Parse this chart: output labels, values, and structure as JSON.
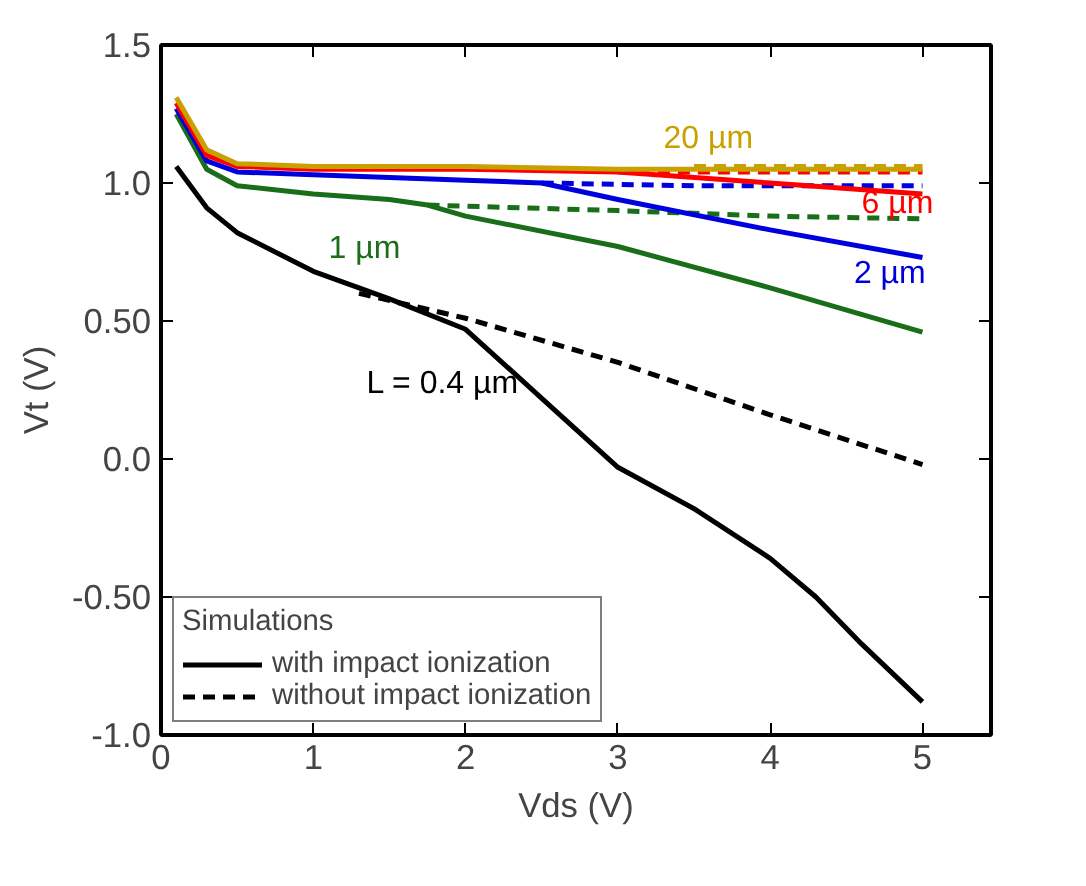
{
  "chart_data": {
    "type": "line",
    "xlabel": "Vds (V)",
    "ylabel": "Vt (V)",
    "legend_title": "Simulations",
    "legend": "bottom left",
    "grid": false,
    "xlim": [
      0,
      5.45
    ],
    "ylim": [
      -1.0,
      1.5
    ],
    "xticks": [
      0,
      1,
      2,
      3,
      4,
      5
    ],
    "yticks": [
      {
        "value": -1.0,
        "label": "-1.0"
      },
      {
        "value": -0.5,
        "label": "-0.50"
      },
      {
        "value": 0.0,
        "label": "0.0"
      },
      {
        "value": 0.5,
        "label": "0.50"
      },
      {
        "value": 1.0,
        "label": "1.0"
      },
      1.5
    ],
    "series": [
      {
        "name": "with impact ionization",
        "color": "#000000",
        "line_style": "solid",
        "x": [
          0.1,
          0.3,
          0.5,
          1.0,
          1.5,
          2.0,
          2.5,
          3.0,
          3.5,
          4.0,
          4.3,
          4.6,
          5.0
        ],
        "values": [
          1.06,
          0.91,
          0.82,
          0.68,
          0.58,
          0.47,
          0.22,
          -0.03,
          -0.18,
          -0.36,
          -0.5,
          -0.67,
          -0.88
        ]
      },
      {
        "name": "without impact ionization",
        "color": "#000000",
        "line_style": "dashed",
        "x": [
          1.3,
          2.0,
          3.0,
          4.0,
          5.0
        ],
        "values": [
          0.6,
          0.51,
          0.35,
          0.16,
          -0.02
        ]
      },
      {
        "color": "#1a6e1a",
        "line_style": "solid",
        "x": [
          0.1,
          0.3,
          0.5,
          1.0,
          1.5,
          1.75,
          2.0,
          3.0,
          4.0,
          5.0
        ],
        "values": [
          1.25,
          1.05,
          0.99,
          0.96,
          0.94,
          0.92,
          0.88,
          0.77,
          0.62,
          0.46
        ]
      },
      {
        "color": "#1a6e1a",
        "line_style": "dashed",
        "x": [
          1.75,
          3.0,
          4.0,
          5.0
        ],
        "values": [
          0.92,
          0.9,
          0.88,
          0.87
        ]
      },
      {
        "color": "#0000dd",
        "line_style": "solid",
        "x": [
          0.1,
          0.3,
          0.5,
          1.0,
          2.0,
          2.5,
          3.0,
          4.0,
          5.0
        ],
        "values": [
          1.27,
          1.08,
          1.04,
          1.03,
          1.01,
          1.0,
          0.94,
          0.83,
          0.73
        ]
      },
      {
        "color": "#0000dd",
        "line_style": "dashed",
        "x": [
          2.5,
          3.5,
          5.0
        ],
        "values": [
          1.0,
          0.99,
          0.99
        ]
      },
      {
        "color": "#ff0000",
        "line_style": "solid",
        "x": [
          0.1,
          0.3,
          0.5,
          1.0,
          2.0,
          3.0,
          4.0,
          5.0
        ],
        "values": [
          1.29,
          1.1,
          1.06,
          1.05,
          1.05,
          1.04,
          1.0,
          0.96
        ]
      },
      {
        "color": "#ff0000",
        "line_style": "dashed",
        "x": [
          3.0,
          4.0,
          5.0
        ],
        "values": [
          1.04,
          1.04,
          1.04
        ]
      },
      {
        "color": "#c8a000",
        "line_style": "solid",
        "x": [
          0.1,
          0.3,
          0.5,
          1.0,
          2.0,
          3.0,
          4.0,
          5.0
        ],
        "values": [
          1.31,
          1.12,
          1.07,
          1.06,
          1.06,
          1.05,
          1.05,
          1.05
        ]
      },
      {
        "color": "#c8a000",
        "line_style": "dashed",
        "x": [
          3.5,
          4.0,
          5.0
        ],
        "values": [
          1.06,
          1.06,
          1.06
        ]
      }
    ],
    "annotations": [
      "L = 0.4 µm",
      "1 µm",
      "2 µm",
      "6 µm",
      "20 µm"
    ]
  }
}
